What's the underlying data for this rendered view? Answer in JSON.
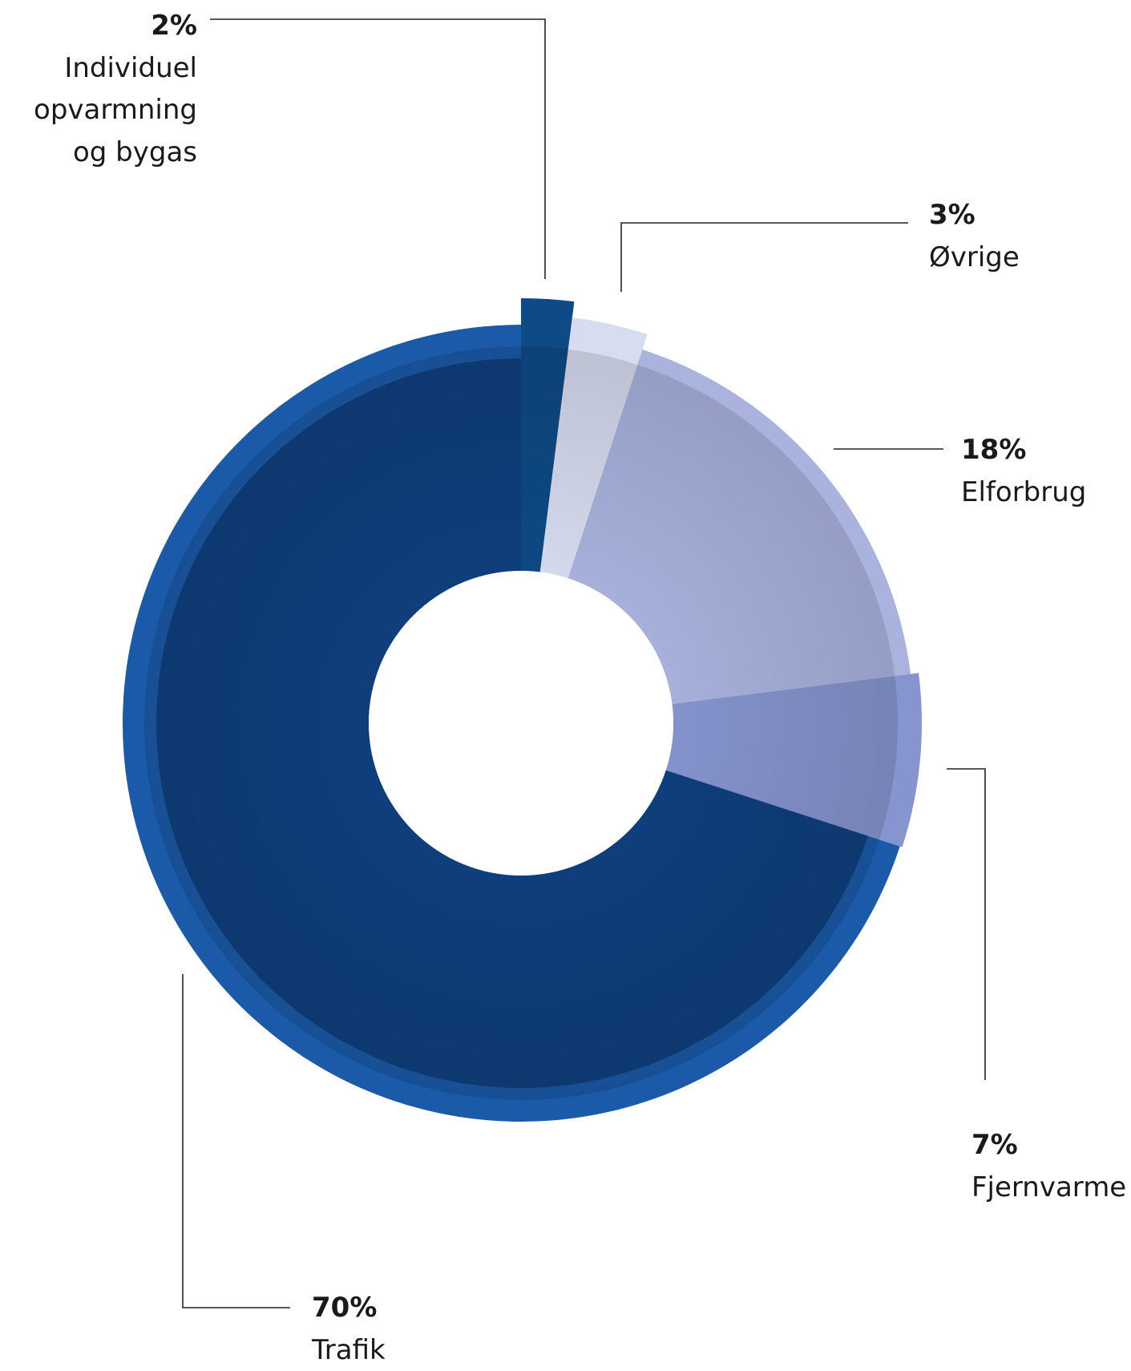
{
  "chart_data": {
    "type": "pie",
    "variant": "donut",
    "categories": [
      "Individuel opvarmning og bygas",
      "Øvrige",
      "Elforbrug",
      "Fjernvarme",
      "Trafik"
    ],
    "values": [
      2,
      3,
      18,
      7,
      70
    ],
    "labels": [
      {
        "pct": "2%",
        "name": "Individuel\nopvarmning\nog bygas"
      },
      {
        "pct": "3%",
        "name": "Øvrige"
      },
      {
        "pct": "18%",
        "name": "Elforbrug"
      },
      {
        "pct": "7%",
        "name": "Fjernvarme"
      },
      {
        "pct": "70%",
        "name": "Trafik"
      }
    ],
    "colors": {
      "Individuel opvarmning og bygas": "#0e4a86",
      "Øvrige": "#d7dcf0",
      "Elforbrug": "#a9b3de",
      "Fjernvarme": "#8695cf",
      "Trafik": "#1a5aa8",
      "trafik_inner": "#0f3f7e"
    },
    "legend": "none"
  }
}
